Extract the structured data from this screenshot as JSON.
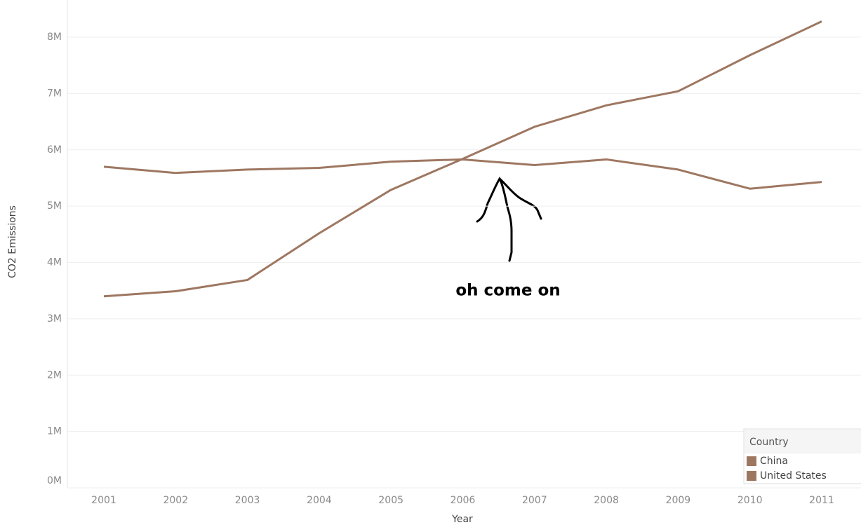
{
  "chart_data": {
    "type": "line",
    "annotation": "oh come on",
    "x_label": "Year",
    "y_label": "CO2 Emissions",
    "legend_title": "Country",
    "legend_position": "bottom-right",
    "categories": [
      "2001",
      "2002",
      "2003",
      "2004",
      "2005",
      "2006",
      "2007",
      "2008",
      "2009",
      "2010",
      "2011"
    ],
    "series": [
      {
        "name": "China",
        "color": "#9e7761",
        "values": [
          3400000,
          3490000,
          3690000,
          4520000,
          5290000,
          5840000,
          6410000,
          6790000,
          7040000,
          7680000,
          8280000
        ]
      },
      {
        "name": "United States",
        "color": "#9e7761",
        "values": [
          5700000,
          5590000,
          5650000,
          5680000,
          5790000,
          5830000,
          5730000,
          5830000,
          5650000,
          5310000,
          5430000
        ]
      }
    ],
    "ylim": [
      0,
      8660000
    ],
    "yticks": [
      {
        "value": 0,
        "label": "0M"
      },
      {
        "value": 1000000,
        "label": "1M"
      },
      {
        "value": 2000000,
        "label": "2M"
      },
      {
        "value": 3000000,
        "label": "3M"
      },
      {
        "value": 4000000,
        "label": "4M"
      },
      {
        "value": 5000000,
        "label": "5M"
      },
      {
        "value": 6000000,
        "label": "6M"
      },
      {
        "value": 7000000,
        "label": "7M"
      },
      {
        "value": 8000000,
        "label": "8M"
      }
    ],
    "grid": true
  }
}
